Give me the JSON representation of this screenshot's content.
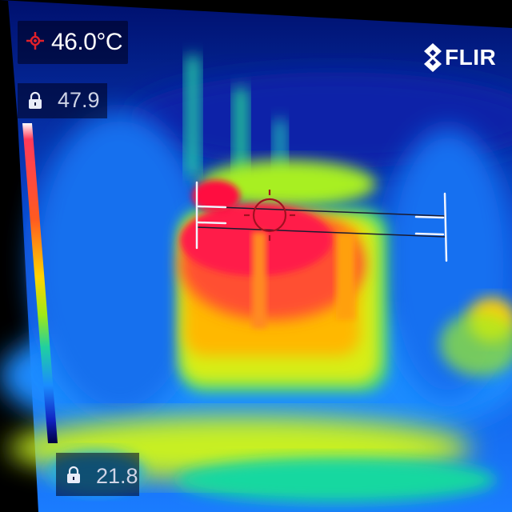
{
  "readouts": {
    "spot_temperature": "46.0°C",
    "scale_max": "47.9",
    "scale_min": "21.8"
  },
  "brand": {
    "name": "FLIR"
  },
  "icons": {
    "spot": "crosshair-spot-icon",
    "max_lock": "lock-icon",
    "min_lock": "lock-icon",
    "logo": "flir-logo-icon"
  },
  "colors": {
    "hot": "#ff1040",
    "warm": "#ffcc00",
    "mid": "#8eea20",
    "cool": "#18a8ff",
    "cold": "#000a6a",
    "spot_marker": "#e0202a"
  },
  "palette_stops": [
    "#ffffff",
    "#ff2040",
    "#ff6a20",
    "#ffd400",
    "#9ee818",
    "#20d0a0",
    "#1a8cff",
    "#1020c0",
    "#000040"
  ]
}
